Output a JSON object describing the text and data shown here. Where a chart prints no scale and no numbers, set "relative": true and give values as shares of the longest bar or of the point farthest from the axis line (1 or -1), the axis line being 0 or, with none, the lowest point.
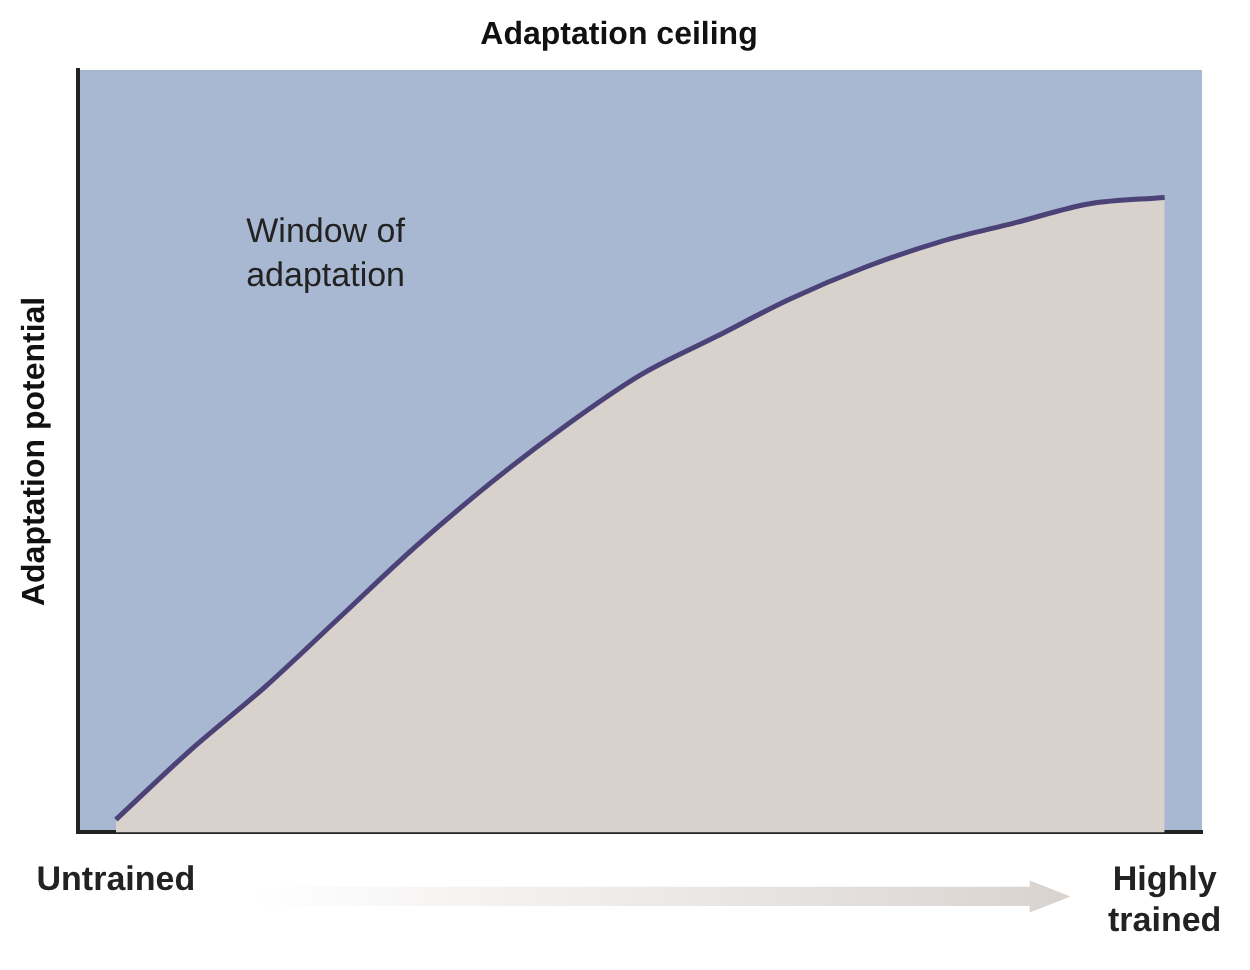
{
  "chart_data": {
    "type": "area",
    "title": "Adaptation ceiling",
    "ylabel": "Adaptation potential",
    "relative": true,
    "categories": [
      "Untrained",
      null,
      null,
      null,
      null,
      null,
      null,
      null,
      null,
      null,
      null,
      null,
      null,
      null,
      "Highly trained"
    ],
    "series": [
      {
        "color": "#4b4278",
        "values": [
          0.02,
          0.13,
          0.23,
          0.34,
          0.45,
          0.55,
          0.64,
          0.72,
          0.78,
          0.84,
          0.89,
          0.93,
          0.96,
          0.99,
          1
        ]
      }
    ],
    "annotations": [
      "Window of adaptation"
    ],
    "grid": false,
    "legend": false,
    "marker": "none",
    "line_style": "solid"
  }
}
